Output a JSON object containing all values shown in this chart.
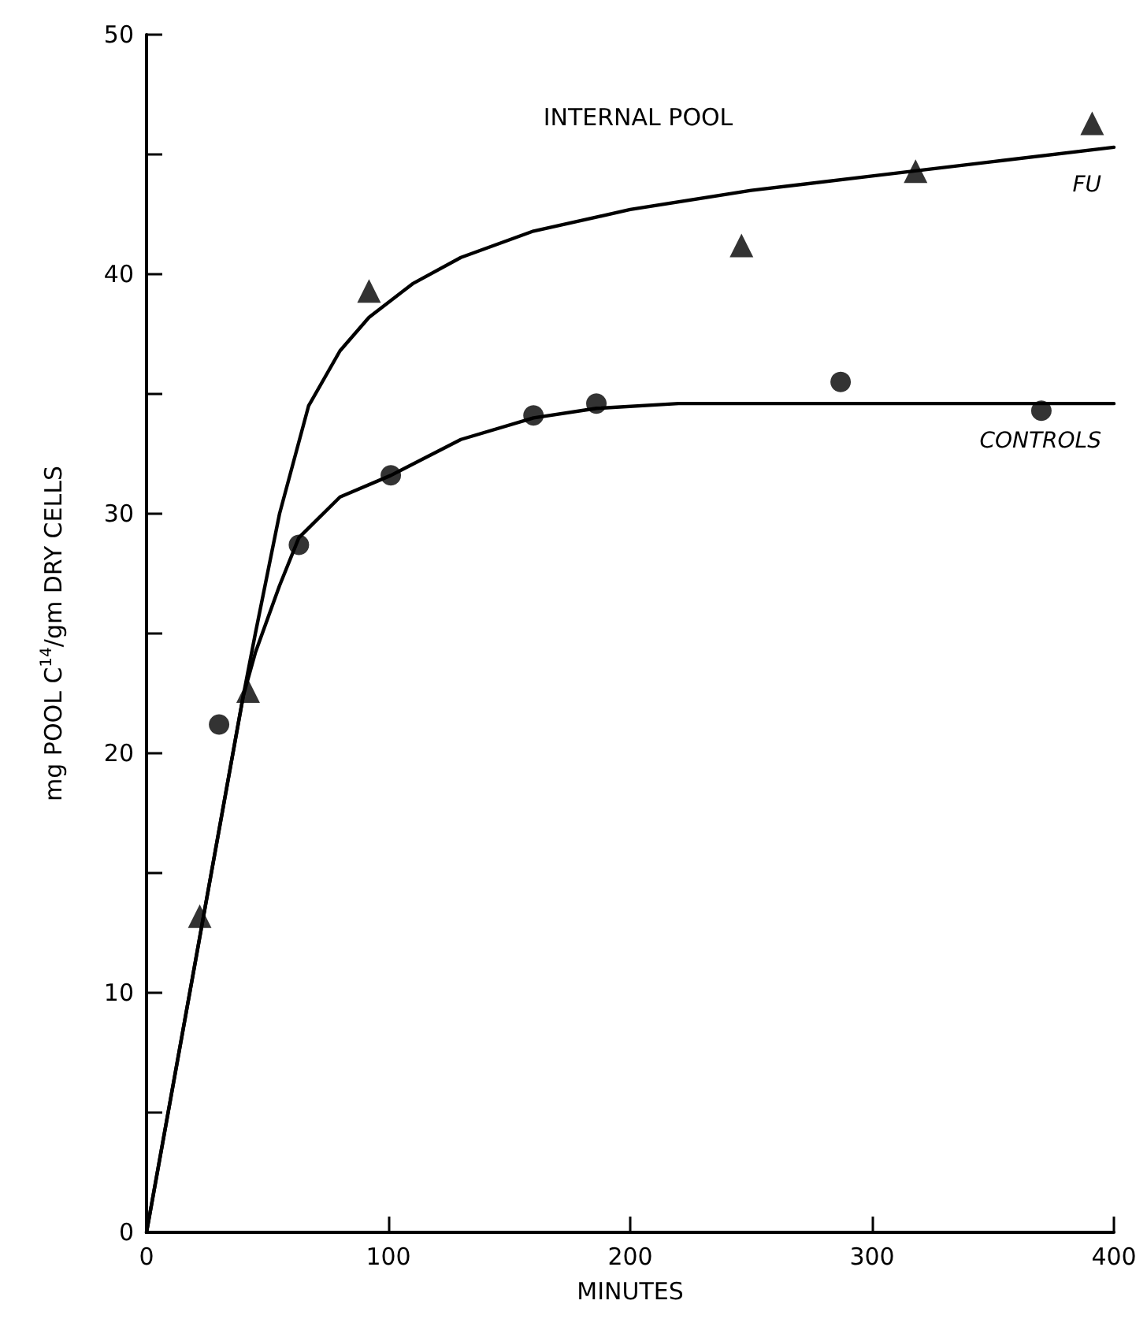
{
  "chart_data": {
    "type": "scatter",
    "title": "INTERNAL POOL",
    "xlabel": "MINUTES",
    "ylabel": "mg POOL C$^{14}$/gm DRY CELLS",
    "xlim": [
      0,
      400
    ],
    "xticks": [
      0,
      100,
      200,
      300,
      400
    ],
    "ylim": [
      0,
      50
    ],
    "yticks": [
      0,
      {
        "value": 5,
        "label": null
      },
      10,
      {
        "value": 15,
        "label": null
      },
      20,
      {
        "value": 25,
        "label": null
      },
      30,
      {
        "value": 35,
        "label": null
      },
      40,
      {
        "value": 45,
        "label": null
      },
      50
    ],
    "grid": false,
    "legend": false,
    "series": [
      {
        "type": "scatter",
        "marker": "triangle",
        "color": "#000000",
        "x": [
          22,
          42,
          92,
          246,
          318,
          391
        ],
        "values": [
          13.2,
          22.6,
          39.3,
          41.2,
          44.3,
          46.3
        ]
      },
      {
        "type": "scatter",
        "marker": "circle",
        "color": "#000000",
        "x": [
          30,
          63,
          101,
          160,
          186,
          287,
          370
        ],
        "values": [
          21.2,
          28.7,
          31.6,
          34.1,
          34.6,
          35.5,
          34.3
        ]
      },
      {
        "type": "line",
        "name": "FU",
        "marker": "none",
        "line_style": "solid",
        "color": "#000000",
        "x": [
          0,
          20,
          40,
          45,
          55,
          67,
          80,
          92,
          110,
          130,
          160,
          200,
          250,
          300,
          350,
          400
        ],
        "values": [
          0,
          11.2,
          22.4,
          25,
          30,
          34.5,
          36.8,
          38.2,
          39.6,
          40.7,
          41.8,
          42.7,
          43.5,
          44.1,
          44.7,
          45.3
        ]
      },
      {
        "type": "line",
        "name": "CONTROLS",
        "marker": "none",
        "line_style": "solid",
        "color": "#000000",
        "x": [
          0,
          20,
          40,
          45,
          55,
          63,
          80,
          101,
          130,
          160,
          186,
          220,
          300,
          400
        ],
        "values": [
          0,
          11.2,
          22.4,
          24.2,
          27,
          29,
          30.7,
          31.6,
          33.1,
          34,
          34.4,
          34.6,
          34.6,
          34.6
        ]
      }
    ]
  }
}
